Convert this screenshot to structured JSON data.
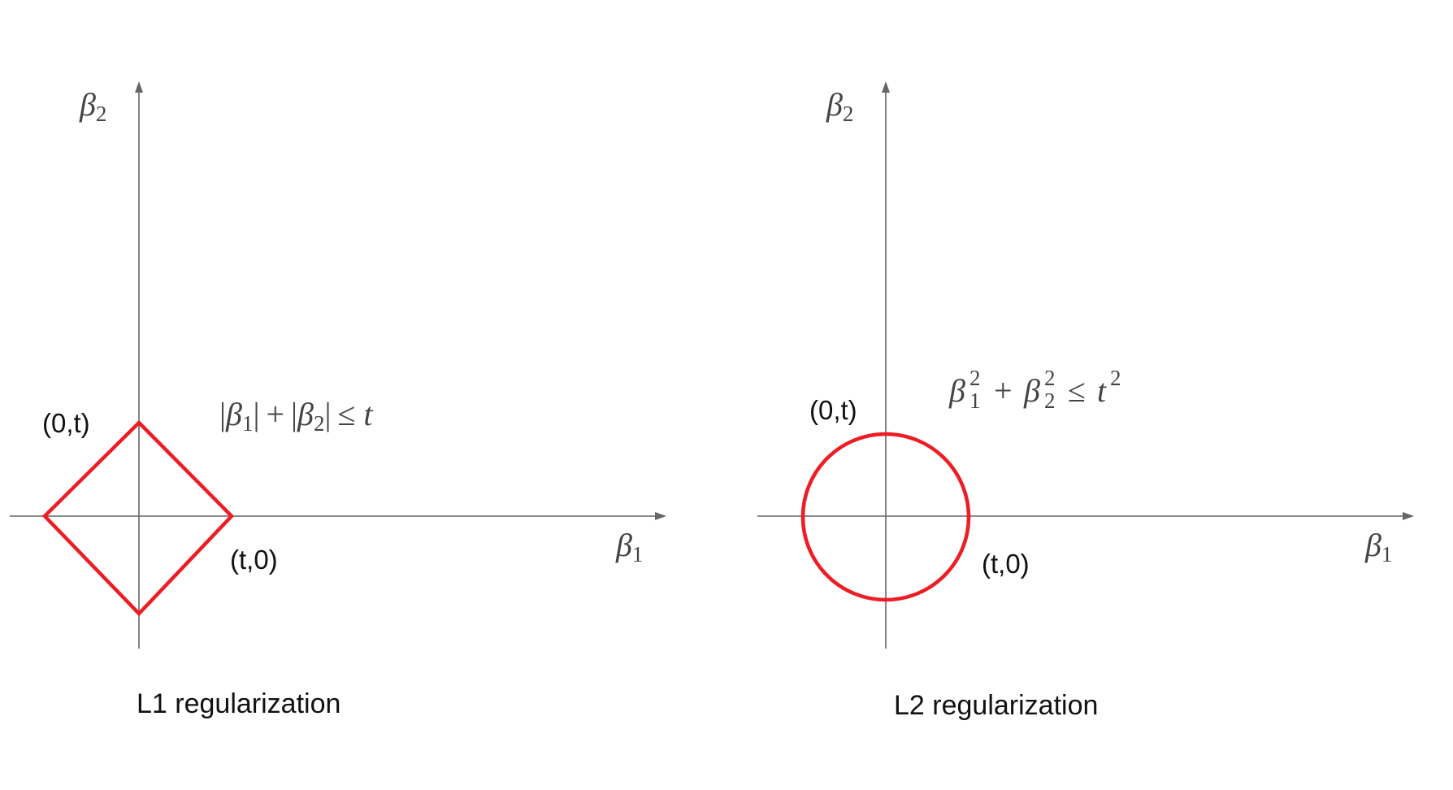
{
  "left_panel": {
    "y_axis_label": {
      "symbol": "β",
      "subscript": "2"
    },
    "x_axis_label": {
      "symbol": "β",
      "subscript": "1"
    },
    "point_top": "(0,t)",
    "point_right": "(t,0)",
    "constraint": {
      "abs_open_1": "|",
      "beta_1": "β",
      "sub_1": "1",
      "abs_close_1": "|",
      "plus": "+",
      "abs_open_2": "|",
      "beta_2": "β",
      "sub_2": "2",
      "abs_close_2": "|",
      "leq": "≤",
      "t": "t"
    },
    "caption": "L1 regularization",
    "shape_color": "#ee1c24"
  },
  "right_panel": {
    "y_axis_label": {
      "symbol": "β",
      "subscript": "2"
    },
    "x_axis_label": {
      "symbol": "β",
      "subscript": "1"
    },
    "point_top": "(0,t)",
    "point_right": "(t,0)",
    "constraint": {
      "beta_1": "β",
      "sup_1": "2",
      "sub_1": "1",
      "plus": "+",
      "beta_2": "β",
      "sup_2": "2",
      "sub_2": "2",
      "leq": "≤",
      "t": "t",
      "sup_t": "2"
    },
    "caption": "L2 regularization",
    "shape_color": "#ee1c24"
  },
  "axis_color": "#666666"
}
